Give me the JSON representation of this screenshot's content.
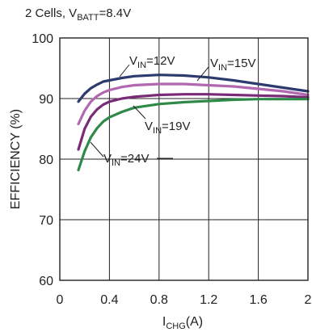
{
  "chart_data": {
    "type": "line",
    "subtitle": {
      "main": "2 Cells, V",
      "sub": "BATT",
      "tail": "=8.4V"
    },
    "xlabel": {
      "main": "I",
      "sub": "CHG",
      "tail": "(A)"
    },
    "ylabel": "EFFICIENCY (%)",
    "xlim": [
      0,
      2
    ],
    "ylim": [
      60,
      100
    ],
    "x_ticks": [
      "0",
      "0.4",
      "0.8",
      "1.2",
      "1.6",
      "2"
    ],
    "y_ticks": [
      "60",
      "70",
      "80",
      "90",
      "100"
    ],
    "grid": true,
    "series": [
      {
        "name": "VIN=12V",
        "color": "#2d3a6e",
        "x": [
          0.15,
          0.2,
          0.25,
          0.3,
          0.35,
          0.4,
          0.5,
          0.6,
          0.8,
          1.0,
          1.2,
          1.4,
          1.6,
          1.8,
          2.0
        ],
        "y": [
          89.5,
          90.8,
          91.7,
          92.3,
          92.8,
          93.0,
          93.4,
          93.7,
          93.9,
          93.8,
          93.5,
          93.0,
          92.4,
          91.8,
          91.2
        ]
      },
      {
        "name": "VIN=15V",
        "color": "#b268b0",
        "x": [
          0.15,
          0.2,
          0.25,
          0.3,
          0.35,
          0.4,
          0.5,
          0.6,
          0.8,
          1.0,
          1.2,
          1.4,
          1.6,
          1.8,
          2.0
        ],
        "y": [
          85.8,
          88.0,
          89.5,
          90.4,
          91.0,
          91.4,
          91.9,
          92.2,
          92.4,
          92.4,
          92.2,
          92.0,
          91.6,
          91.2,
          90.6
        ]
      },
      {
        "name": "VIN=19V",
        "color": "#7a2b78",
        "x": [
          0.15,
          0.2,
          0.25,
          0.3,
          0.35,
          0.4,
          0.5,
          0.6,
          0.8,
          1.0,
          1.2,
          1.4,
          1.6,
          1.8,
          2.0
        ],
        "y": [
          81.6,
          85.0,
          87.0,
          88.2,
          89.0,
          89.5,
          90.0,
          90.3,
          90.6,
          90.7,
          90.7,
          90.6,
          90.5,
          90.4,
          90.2
        ]
      },
      {
        "name": "VIN=24V",
        "color": "#2f8a4a",
        "x": [
          0.15,
          0.2,
          0.25,
          0.3,
          0.35,
          0.4,
          0.5,
          0.6,
          0.8,
          1.0,
          1.2,
          1.4,
          1.6,
          1.8,
          2.0
        ],
        "y": [
          78.2,
          81.3,
          83.6,
          85.1,
          86.2,
          86.9,
          87.8,
          88.5,
          89.1,
          89.4,
          89.6,
          89.8,
          89.9,
          89.9,
          89.9
        ]
      }
    ],
    "annotations": [
      {
        "main": "V",
        "sub": "IN",
        "tail": "=12V"
      },
      {
        "main": "V",
        "sub": "IN",
        "tail": "=15V"
      },
      {
        "main": "V",
        "sub": "IN",
        "tail": "=19V"
      },
      {
        "main": "V",
        "sub": "IN",
        "tail": "=24V"
      }
    ]
  }
}
